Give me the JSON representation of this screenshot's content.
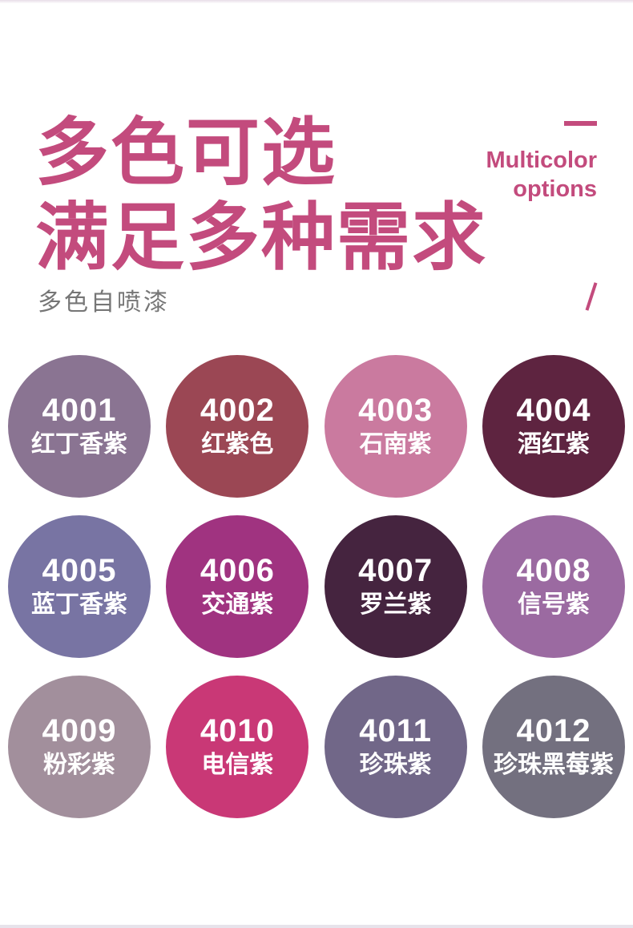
{
  "accent_color": "#c34b7d",
  "header": {
    "title_line1": "多色可选",
    "title_line2": "满足多种需求",
    "subtitle_en_line1": "Multicolor",
    "subtitle_en_line2": "options",
    "subtitle_cn": "多色自喷漆"
  },
  "swatches": [
    {
      "code": "4001",
      "name": "红丁香紫",
      "hex": "#8a7492"
    },
    {
      "code": "4002",
      "name": "红紫色",
      "hex": "#9b4754"
    },
    {
      "code": "4003",
      "name": "石南紫",
      "hex": "#ca7a9f"
    },
    {
      "code": "4004",
      "name": "酒红紫",
      "hex": "#5e2440"
    },
    {
      "code": "4005",
      "name": "蓝丁香紫",
      "hex": "#7874a3"
    },
    {
      "code": "4006",
      "name": "交通紫",
      "hex": "#a03380"
    },
    {
      "code": "4007",
      "name": "罗兰紫",
      "hex": "#45243f"
    },
    {
      "code": "4008",
      "name": "信号紫",
      "hex": "#9b6aa1"
    },
    {
      "code": "4009",
      "name": "粉彩紫",
      "hex": "#a28f9c"
    },
    {
      "code": "4010",
      "name": "电信紫",
      "hex": "#c93876"
    },
    {
      "code": "4011",
      "name": "珍珠紫",
      "hex": "#716788"
    },
    {
      "code": "4012",
      "name": "珍珠黑莓紫",
      "hex": "#73707f"
    }
  ]
}
